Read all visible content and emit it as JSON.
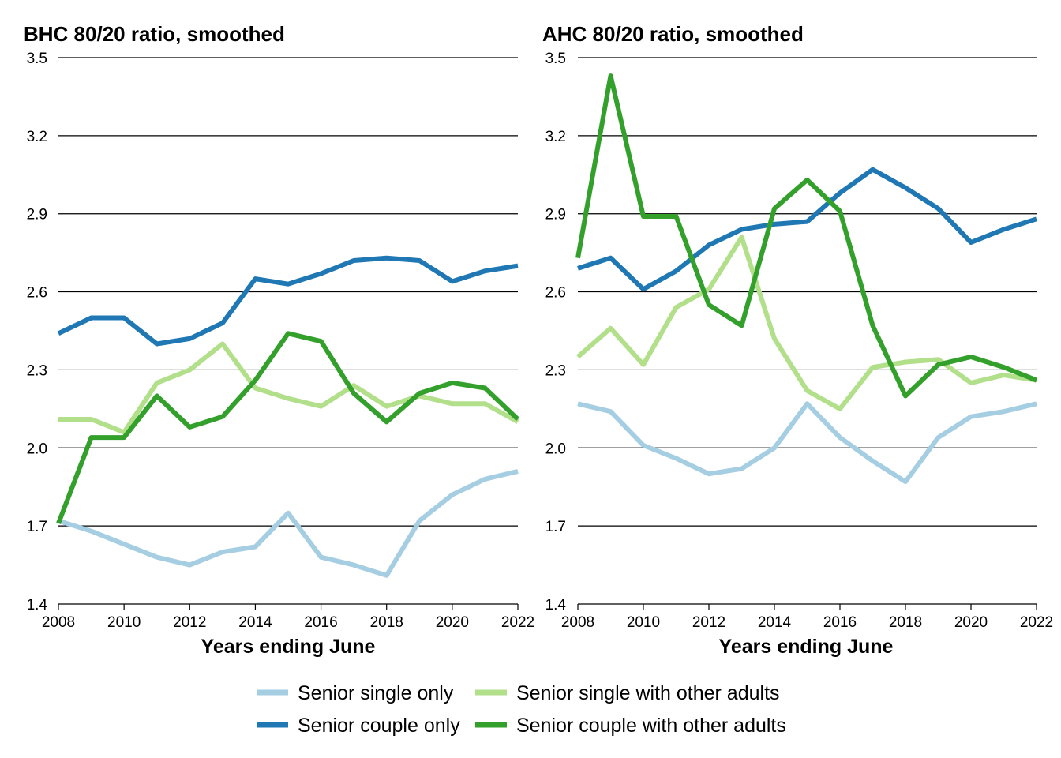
{
  "chart_data": [
    {
      "type": "line",
      "title": "BHC 80/20 ratio, smoothed",
      "xlabel": "Years ending June",
      "ylabel": "",
      "xlim": [
        2008,
        2022
      ],
      "ylim": [
        1.4,
        3.5
      ],
      "xticks": [
        "2008",
        "2010",
        "2012",
        "2014",
        "2016",
        "2018",
        "2020",
        "2022"
      ],
      "yticks": [
        "3.5",
        "3.2",
        "2.9",
        "2.6",
        "2.3",
        "2.0",
        "1.7",
        "1.4"
      ],
      "grid": "horizontal",
      "x": [
        2008,
        2009,
        2010,
        2011,
        2012,
        2013,
        2014,
        2015,
        2016,
        2017,
        2018,
        2019,
        2020,
        2021,
        2022
      ],
      "series": [
        {
          "name": "Senior single only",
          "color": "#a6cee3",
          "values": [
            1.72,
            1.68,
            1.63,
            1.58,
            1.55,
            1.6,
            1.62,
            1.75,
            1.58,
            1.55,
            1.51,
            1.72,
            1.82,
            1.88,
            1.91
          ]
        },
        {
          "name": "Senior single with other adults",
          "color": "#b2df8a",
          "values": [
            2.11,
            2.11,
            2.06,
            2.25,
            2.3,
            2.4,
            2.23,
            2.19,
            2.16,
            2.24,
            2.16,
            2.2,
            2.17,
            2.17,
            2.1
          ]
        },
        {
          "name": "Senior couple only",
          "color": "#1f78b4",
          "values": [
            2.44,
            2.5,
            2.5,
            2.4,
            2.42,
            2.48,
            2.65,
            2.63,
            2.67,
            2.72,
            2.73,
            2.72,
            2.64,
            2.68,
            2.7
          ]
        },
        {
          "name": "Senior couple with other adults",
          "color": "#33a02c",
          "values": [
            1.71,
            2.04,
            2.04,
            2.2,
            2.08,
            2.12,
            2.26,
            2.44,
            2.41,
            2.21,
            2.1,
            2.21,
            2.25,
            2.23,
            2.11
          ]
        }
      ]
    },
    {
      "type": "line",
      "title": "AHC 80/20 ratio, smoothed",
      "xlabel": "Years ending June",
      "ylabel": "",
      "xlim": [
        2008,
        2022
      ],
      "ylim": [
        1.4,
        3.5
      ],
      "xticks": [
        "2008",
        "2010",
        "2012",
        "2014",
        "2016",
        "2018",
        "2020",
        "2022"
      ],
      "yticks": [
        "3.5",
        "3.2",
        "2.9",
        "2.6",
        "2.3",
        "2.0",
        "1.7",
        "1.4"
      ],
      "grid": "horizontal",
      "x": [
        2008,
        2009,
        2010,
        2011,
        2012,
        2013,
        2014,
        2015,
        2016,
        2017,
        2018,
        2019,
        2020,
        2021,
        2022
      ],
      "series": [
        {
          "name": "Senior single only",
          "color": "#a6cee3",
          "values": [
            2.17,
            2.14,
            2.01,
            1.96,
            1.9,
            1.92,
            2.0,
            2.17,
            2.04,
            1.95,
            1.87,
            2.04,
            2.12,
            2.14,
            2.17
          ]
        },
        {
          "name": "Senior single with other adults",
          "color": "#b2df8a",
          "values": [
            2.35,
            2.46,
            2.32,
            2.54,
            2.61,
            2.81,
            2.42,
            2.22,
            2.15,
            2.31,
            2.33,
            2.34,
            2.25,
            2.28,
            2.26
          ]
        },
        {
          "name": "Senior couple only",
          "color": "#1f78b4",
          "values": [
            2.69,
            2.73,
            2.61,
            2.68,
            2.78,
            2.84,
            2.86,
            2.87,
            2.98,
            3.07,
            3.0,
            2.92,
            2.79,
            2.84,
            2.88
          ]
        },
        {
          "name": "Senior couple with other adults",
          "color": "#33a02c",
          "values": [
            2.73,
            3.43,
            2.89,
            2.89,
            2.55,
            2.47,
            2.92,
            3.03,
            2.91,
            2.47,
            2.2,
            2.32,
            2.35,
            2.31,
            2.26
          ]
        }
      ]
    }
  ],
  "legend": {
    "placement": "bottom",
    "items": [
      {
        "label": "Senior single only",
        "color": "#a6cee3"
      },
      {
        "label": "Senior single with other adults",
        "color": "#b2df8a"
      },
      {
        "label": "Senior couple only",
        "color": "#1f78b4"
      },
      {
        "label": "Senior couple with other adults",
        "color": "#33a02c"
      }
    ]
  }
}
